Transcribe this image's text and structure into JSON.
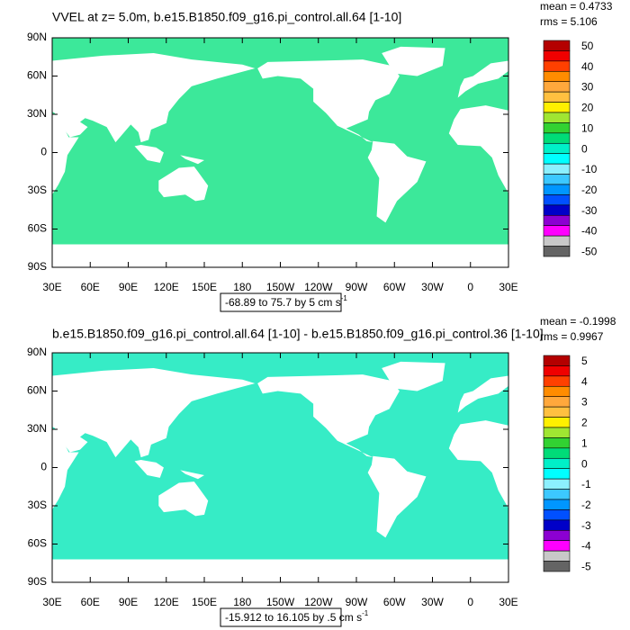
{
  "panels": [
    {
      "title": "VVEL at z=   5.0m, b.e15.B1850.f09_g16.pi_control.all.64 [1-10]",
      "mean": "mean = 0.4733",
      "rms": "rms = 5.106",
      "lat_labels": [
        "90N",
        "60N",
        "30N",
        "0",
        "30S",
        "60S",
        "90S"
      ],
      "lon_labels": [
        "30E",
        "60E",
        "90E",
        "120E",
        "150E",
        "180",
        "150W",
        "120W",
        "90W",
        "60W",
        "30W",
        "0",
        "30E"
      ],
      "info_text": "-68.89 to 75.7 by 5 cm s",
      "info_superscript": "-1",
      "colorbar_labels": [
        50,
        40,
        30,
        20,
        10,
        0,
        -10,
        -20,
        -30,
        -40,
        -50
      ],
      "ocean_color": "#3ce89a"
    },
    {
      "title": "b.e15.B1850.f09_g16.pi_control.all.64 [1-10] - b.e15.B1850.f09_g16.pi_control.36 [1-10]",
      "mean": "mean = -0.1998",
      "rms": "rms = 0.9967",
      "lat_labels": [
        "90N",
        "60N",
        "30N",
        "0",
        "30S",
        "60S",
        "90S"
      ],
      "lon_labels": [
        "30E",
        "60E",
        "90E",
        "120E",
        "150E",
        "180",
        "150W",
        "120W",
        "90W",
        "60W",
        "30W",
        "0",
        "30E"
      ],
      "info_text": "-15.912 to 16.105 by .5 cm s",
      "info_superscript": "-1",
      "colorbar_labels": [
        5,
        4,
        3,
        2,
        1,
        0,
        -1,
        -2,
        -3,
        -4,
        -5
      ],
      "ocean_color": "#36ecc6"
    }
  ],
  "colorbar_colors": [
    "#b40000",
    "#f00000",
    "#ff4000",
    "#ff8c00",
    "#ffa83c",
    "#ffc040",
    "#fff000",
    "#a0e632",
    "#32d232",
    "#00dc78",
    "#00f0c8",
    "#00ffff",
    "#8cf0ff",
    "#3cc8ff",
    "#0096ff",
    "#0050ff",
    "#0000c8",
    "#8c00d2",
    "#ff00ff",
    "#c8c8c8",
    "#646464"
  ]
}
